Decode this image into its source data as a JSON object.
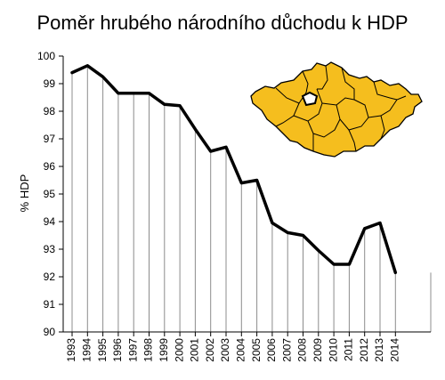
{
  "chart_data": {
    "type": "area",
    "title": "Poměr hrubého národního důchodu k HDP",
    "xlabel": "",
    "ylabel": "% HDP",
    "ylim": [
      90,
      100
    ],
    "yticks": [
      "90",
      "91",
      "92",
      "93",
      "94",
      "95",
      "96",
      "97",
      "98",
      "99",
      "100"
    ],
    "categories": [
      "1993",
      "1994",
      "1995",
      "1996",
      "1997",
      "1998",
      "1999",
      "2000",
      "2001",
      "2002",
      "2003",
      "2004",
      "2005",
      "2006",
      "2007",
      "2008",
      "2009",
      "2010",
      "2011",
      "2012",
      "2013",
      "2014"
    ],
    "values": [
      99.4,
      99.65,
      99.25,
      98.65,
      98.65,
      98.65,
      98.25,
      98.2,
      97.35,
      96.55,
      96.7,
      95.4,
      95.5,
      93.95,
      93.6,
      93.5,
      92.95,
      92.45,
      92.45,
      93.75,
      93.95,
      92.15
    ],
    "grid": "vertical drop lines",
    "legend": "none",
    "line_color": "#000000",
    "map_inset": "Czech Republic regions map (yellow), top-right",
    "map_color": "#F5BE1E"
  }
}
